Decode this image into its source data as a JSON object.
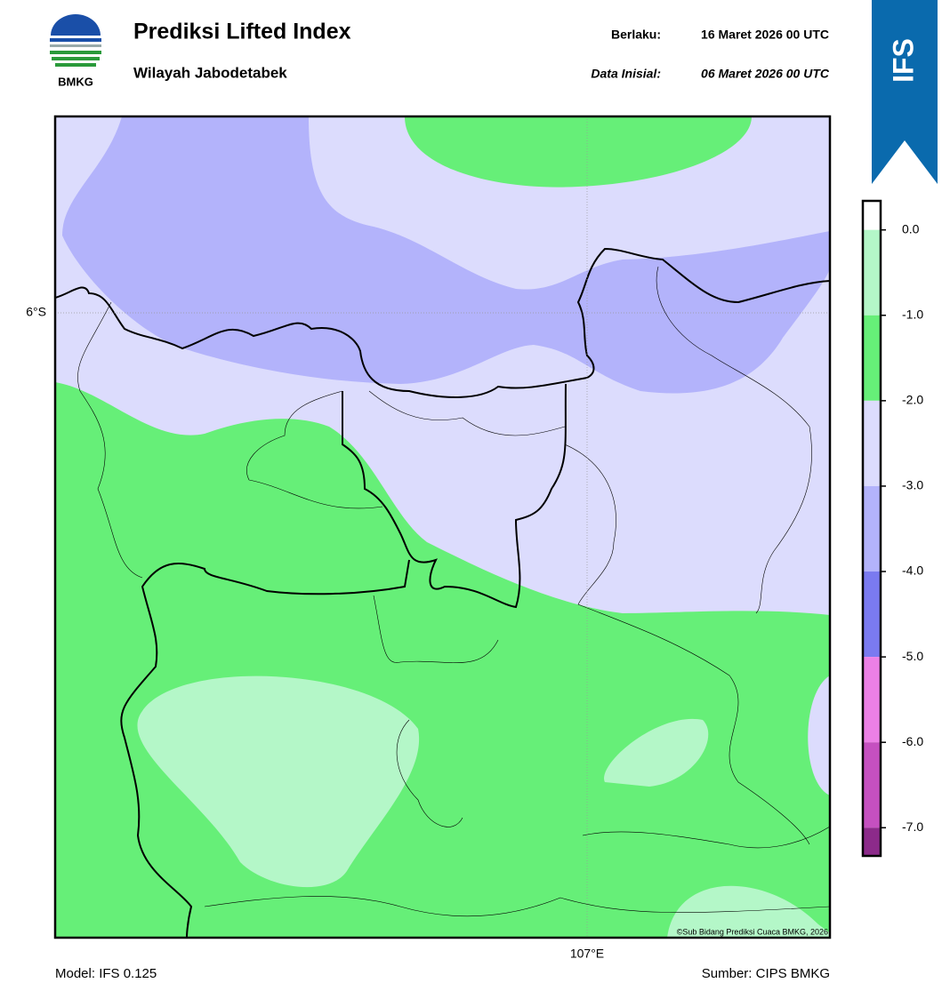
{
  "header": {
    "logo_text": "BMKG",
    "title": "Prediksi Lifted Index",
    "subtitle": "Wilayah Jabodetabek",
    "valid_label": "Berlaku:",
    "valid_date": "16 Maret 2026 00 UTC",
    "init_label": "Data Inisial:",
    "init_date": "06 Maret 2026 00 UTC"
  },
  "badge": "IFS",
  "map": {
    "lat_label": "6°S",
    "lon_label": "107°E",
    "credit": "©Sub Bidang Prediksi Cuaca BMKG, 2026"
  },
  "colorbar": {
    "bounds": [
      0.34,
      0,
      -1,
      -2,
      -3,
      -4,
      -5,
      -6,
      -7,
      -7.33
    ],
    "colors": [
      "#ffffff",
      "#b4f7c8",
      "#66ef78",
      "#dcdcfd",
      "#b3b3fb",
      "#7a7af0",
      "#ec80e6",
      "#c550c0",
      "#8c2a8a"
    ],
    "ticks": [
      {
        "value": 0,
        "label": "0.0"
      },
      {
        "value": -1,
        "label": "-1.0"
      },
      {
        "value": -2,
        "label": "-2.0"
      },
      {
        "value": -3,
        "label": "-3.0"
      },
      {
        "value": -4,
        "label": "-4.0"
      },
      {
        "value": -5,
        "label": "-5.0"
      },
      {
        "value": -6,
        "label": "-6.0"
      },
      {
        "value": -7,
        "label": "-7.0"
      }
    ]
  },
  "footer": {
    "model": "Model: IFS 0.125",
    "source": "Sumber: CIPS BMKG"
  }
}
